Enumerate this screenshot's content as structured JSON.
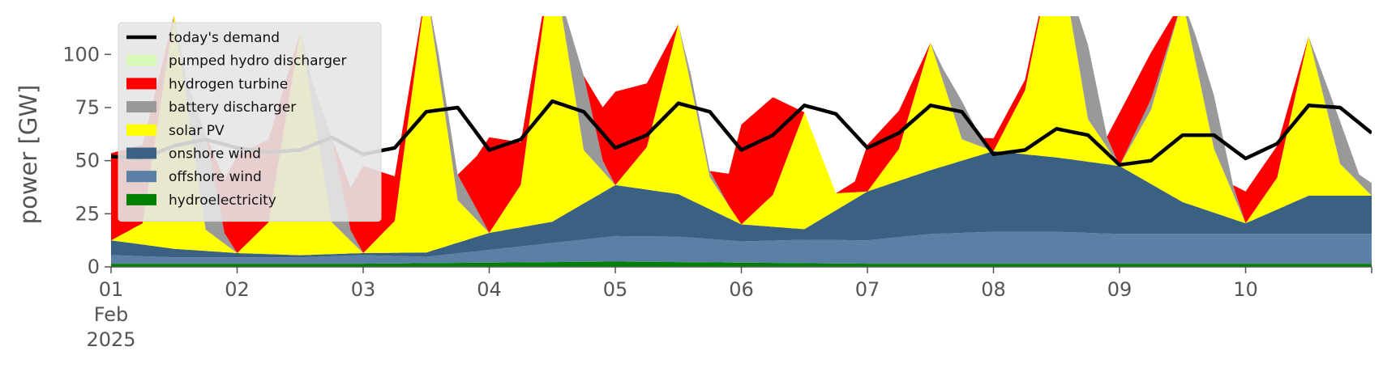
{
  "chart_data": {
    "type": "area",
    "stacked": true,
    "ylabel": "power [GW]",
    "xlabel": "",
    "x_start": "2025-02-01T00:00",
    "x_end": "2025-02-11T00:00",
    "ylim": [
      0,
      118
    ],
    "yticks": [
      0,
      25,
      50,
      75,
      100
    ],
    "xticks": [
      {
        "day": 0,
        "lines": [
          "01",
          "Feb",
          "2025"
        ]
      },
      {
        "day": 1,
        "lines": [
          "02"
        ]
      },
      {
        "day": 2,
        "lines": [
          "03"
        ]
      },
      {
        "day": 3,
        "lines": [
          "04"
        ]
      },
      {
        "day": 4,
        "lines": [
          "05"
        ]
      },
      {
        "day": 5,
        "lines": [
          "06"
        ]
      },
      {
        "day": 6,
        "lines": [
          "07"
        ]
      },
      {
        "day": 7,
        "lines": [
          "08"
        ]
      },
      {
        "day": 8,
        "lines": [
          "09"
        ]
      },
      {
        "day": 9,
        "lines": [
          "10"
        ]
      }
    ],
    "grid": false,
    "legend_position": "top-left",
    "legend": [
      {
        "label": "today's demand",
        "color": "#000000",
        "kind": "line"
      },
      {
        "label": "pumped hydro discharger",
        "color": "#d8f9b8",
        "kind": "patch"
      },
      {
        "label": "hydrogen turbine",
        "color": "#ff0000",
        "kind": "patch"
      },
      {
        "label": "battery discharger",
        "color": "#999999",
        "kind": "patch"
      },
      {
        "label": "solar PV",
        "color": "#ffff00",
        "kind": "patch"
      },
      {
        "label": "onshore wind",
        "color": "#3b6182",
        "kind": "patch"
      },
      {
        "label": "offshore wind",
        "color": "#5b80a5",
        "kind": "patch"
      },
      {
        "label": "hydroelectricity",
        "color": "#008000",
        "kind": "patch"
      }
    ],
    "demand": {
      "name": "today's demand",
      "points": [
        [
          0,
          52
        ],
        [
          0.25,
          51
        ],
        [
          0.5,
          57
        ],
        [
          0.75,
          60
        ],
        [
          1,
          56
        ],
        [
          1.25,
          54
        ],
        [
          1.5,
          55
        ],
        [
          1.75,
          61
        ],
        [
          2,
          53
        ],
        [
          2.25,
          56
        ],
        [
          2.5,
          73
        ],
        [
          2.75,
          75
        ],
        [
          3,
          55
        ],
        [
          3.25,
          60
        ],
        [
          3.5,
          78
        ],
        [
          3.75,
          73
        ],
        [
          4,
          56
        ],
        [
          4.25,
          62
        ],
        [
          4.5,
          77
        ],
        [
          4.75,
          73
        ],
        [
          5,
          55
        ],
        [
          5.25,
          62
        ],
        [
          5.5,
          76
        ],
        [
          5.75,
          72
        ],
        [
          6,
          56
        ],
        [
          6.25,
          63
        ],
        [
          6.5,
          76
        ],
        [
          6.75,
          73
        ],
        [
          7,
          53
        ],
        [
          7.25,
          55
        ],
        [
          7.5,
          65
        ],
        [
          7.75,
          62
        ],
        [
          8,
          48
        ],
        [
          8.25,
          50
        ],
        [
          8.5,
          62
        ],
        [
          8.75,
          62
        ],
        [
          9,
          51
        ],
        [
          9.25,
          58
        ],
        [
          9.5,
          76
        ],
        [
          9.75,
          75
        ],
        [
          10,
          63
        ]
      ]
    },
    "series": [
      {
        "name": "hydroelectricity",
        "color": "#008000",
        "points": [
          [
            0,
            1.5
          ],
          [
            2,
            1.5
          ],
          [
            3,
            2
          ],
          [
            4,
            2.5
          ],
          [
            5,
            2
          ],
          [
            6,
            1.5
          ],
          [
            7,
            1.5
          ],
          [
            10,
            1.5
          ]
        ]
      },
      {
        "name": "offshore wind",
        "color": "#5b80a5",
        "points": [
          [
            0,
            4
          ],
          [
            0.5,
            3
          ],
          [
            1,
            3
          ],
          [
            1.5,
            3
          ],
          [
            2,
            4
          ],
          [
            2.5,
            3
          ],
          [
            3,
            6
          ],
          [
            3.5,
            9
          ],
          [
            4,
            12
          ],
          [
            4.5,
            12
          ],
          [
            5,
            10
          ],
          [
            5.5,
            11
          ],
          [
            6,
            11
          ],
          [
            6.5,
            14
          ],
          [
            7,
            15
          ],
          [
            7.5,
            15
          ],
          [
            8,
            14
          ],
          [
            8.5,
            14
          ],
          [
            9,
            14
          ],
          [
            9.5,
            14
          ],
          [
            10,
            14
          ]
        ]
      },
      {
        "name": "onshore wind",
        "color": "#3b6182",
        "points": [
          [
            0,
            7
          ],
          [
            0.5,
            4
          ],
          [
            1,
            2
          ],
          [
            1.5,
            1
          ],
          [
            2,
            1
          ],
          [
            2.5,
            2
          ],
          [
            3,
            8
          ],
          [
            3.5,
            10
          ],
          [
            4,
            24
          ],
          [
            4.5,
            20
          ],
          [
            5,
            8
          ],
          [
            5.5,
            5
          ],
          [
            6,
            23
          ],
          [
            6.5,
            30
          ],
          [
            7,
            38
          ],
          [
            7.5,
            35
          ],
          [
            8,
            32
          ],
          [
            8.5,
            15
          ],
          [
            9,
            5
          ],
          [
            9.5,
            18
          ],
          [
            10,
            18
          ]
        ]
      },
      {
        "name": "solar PV",
        "color": "#ffff00",
        "points": [
          [
            0,
            0
          ],
          [
            0.25,
            10
          ],
          [
            0.5,
            110
          ],
          [
            0.75,
            10
          ],
          [
            1,
            0
          ],
          [
            1.25,
            15
          ],
          [
            1.5,
            105
          ],
          [
            1.75,
            15
          ],
          [
            2,
            0
          ],
          [
            2.25,
            15
          ],
          [
            2.5,
            125
          ],
          [
            2.75,
            20
          ],
          [
            3,
            0
          ],
          [
            3.25,
            20
          ],
          [
            3.5,
            125
          ],
          [
            3.75,
            25
          ],
          [
            4,
            0
          ],
          [
            4.25,
            20
          ],
          [
            4.5,
            80
          ],
          [
            4.75,
            15
          ],
          [
            5,
            0
          ],
          [
            5.25,
            15
          ],
          [
            5.5,
            55
          ],
          [
            5.75,
            8
          ],
          [
            6,
            0
          ],
          [
            6.25,
            15
          ],
          [
            6.5,
            60
          ],
          [
            6.75,
            10
          ],
          [
            7,
            0
          ],
          [
            7.25,
            30
          ],
          [
            7.5,
            105
          ],
          [
            7.75,
            20
          ],
          [
            8,
            0
          ],
          [
            8.25,
            35
          ],
          [
            8.5,
            95
          ],
          [
            8.75,
            30
          ],
          [
            9,
            0
          ],
          [
            9.25,
            15
          ],
          [
            9.5,
            75
          ],
          [
            9.75,
            15
          ],
          [
            10,
            0
          ]
        ]
      },
      {
        "name": "battery discharger",
        "color": "#999999",
        "points": [
          [
            0,
            0
          ],
          [
            0.25,
            0
          ],
          [
            0.5,
            0
          ],
          [
            0.6,
            10
          ],
          [
            0.75,
            45
          ],
          [
            0.9,
            5
          ],
          [
            1,
            0
          ],
          [
            1.25,
            0
          ],
          [
            1.5,
            0
          ],
          [
            1.6,
            12
          ],
          [
            1.75,
            40
          ],
          [
            1.9,
            5
          ],
          [
            2,
            0
          ],
          [
            2.5,
            0
          ],
          [
            2.6,
            8
          ],
          [
            2.75,
            12
          ],
          [
            2.9,
            5
          ],
          [
            3,
            0
          ],
          [
            3.5,
            0
          ],
          [
            3.6,
            10
          ],
          [
            3.75,
            35
          ],
          [
            3.9,
            5
          ],
          [
            4,
            0
          ],
          [
            4.5,
            0
          ],
          [
            4.6,
            5
          ],
          [
            4.75,
            3
          ],
          [
            4.9,
            0
          ],
          [
            5,
            0
          ],
          [
            5.5,
            0
          ],
          [
            5.75,
            0
          ],
          [
            6,
            0
          ],
          [
            6.5,
            0
          ],
          [
            6.6,
            6
          ],
          [
            6.75,
            18
          ],
          [
            6.9,
            4
          ],
          [
            7,
            0
          ],
          [
            7.5,
            0
          ],
          [
            7.6,
            10
          ],
          [
            7.75,
            35
          ],
          [
            7.9,
            5
          ],
          [
            8,
            0
          ],
          [
            8.25,
            5
          ],
          [
            8.5,
            0
          ],
          [
            8.6,
            12
          ],
          [
            8.75,
            25
          ],
          [
            8.9,
            4
          ],
          [
            9,
            0
          ],
          [
            9.5,
            0
          ],
          [
            9.75,
            20
          ],
          [
            9.9,
            4
          ],
          [
            10,
            6
          ]
        ]
      },
      {
        "name": "hydrogen turbine",
        "color": "#ff0000",
        "points": [
          [
            0,
            41
          ],
          [
            0.25,
            37
          ],
          [
            0.5,
            0
          ],
          [
            0.6,
            0
          ],
          [
            0.75,
            0
          ],
          [
            0.9,
            25
          ],
          [
            1,
            46
          ],
          [
            1.25,
            39
          ],
          [
            1.5,
            0
          ],
          [
            1.6,
            0
          ],
          [
            1.75,
            0
          ],
          [
            1.9,
            20
          ],
          [
            2,
            41
          ],
          [
            2.25,
            21
          ],
          [
            2.5,
            0
          ],
          [
            2.6,
            0
          ],
          [
            2.75,
            0
          ],
          [
            2.9,
            25
          ],
          [
            3,
            45
          ],
          [
            3.25,
            20
          ],
          [
            3.5,
            0
          ],
          [
            3.6,
            0
          ],
          [
            3.75,
            0
          ],
          [
            3.9,
            25
          ],
          [
            4,
            44
          ],
          [
            4.25,
            30
          ],
          [
            4.5,
            0
          ],
          [
            4.6,
            0
          ],
          [
            4.75,
            0
          ],
          [
            4.9,
            15
          ],
          [
            5,
            47
          ],
          [
            5.25,
            46
          ],
          [
            5.5,
            0
          ],
          [
            5.6,
            0
          ],
          [
            5.75,
            0
          ],
          [
            5.9,
            5
          ],
          [
            6,
            22
          ],
          [
            6.25,
            18
          ],
          [
            6.5,
            0
          ],
          [
            6.6,
            0
          ],
          [
            6.75,
            0
          ],
          [
            6.9,
            0
          ],
          [
            7,
            6
          ],
          [
            7.25,
            5
          ],
          [
            7.5,
            0
          ],
          [
            7.6,
            0
          ],
          [
            7.75,
            0
          ],
          [
            7.9,
            0
          ],
          [
            8,
            25
          ],
          [
            8.25,
            22
          ],
          [
            8.5,
            0
          ],
          [
            8.6,
            0
          ],
          [
            8.75,
            0
          ],
          [
            8.9,
            0
          ],
          [
            9,
            15
          ],
          [
            9.25,
            15
          ],
          [
            9.5,
            0
          ],
          [
            9.6,
            0
          ],
          [
            9.75,
            0
          ],
          [
            9.9,
            0
          ],
          [
            10,
            0
          ]
        ]
      },
      {
        "name": "pumped hydro discharger",
        "color": "#d8f9b8",
        "points": [
          [
            0,
            0
          ],
          [
            10,
            0
          ]
        ]
      }
    ]
  }
}
